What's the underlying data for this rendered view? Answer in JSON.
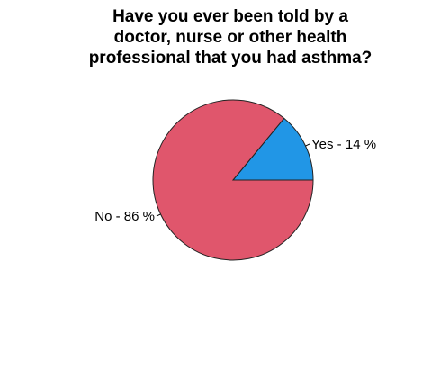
{
  "chart_data": {
    "type": "pie",
    "title_lines": [
      "Have you ever been told by a",
      "doctor, nurse or other health",
      "professional that you had asthma?"
    ],
    "slices": [
      {
        "label": "Yes - 14 %",
        "value": 14,
        "color": "#2196E6"
      },
      {
        "label": "No - 86 %",
        "value": 86,
        "color": "#E0566C"
      }
    ],
    "start_angle_deg": 0,
    "direction": "counterclockwise"
  }
}
